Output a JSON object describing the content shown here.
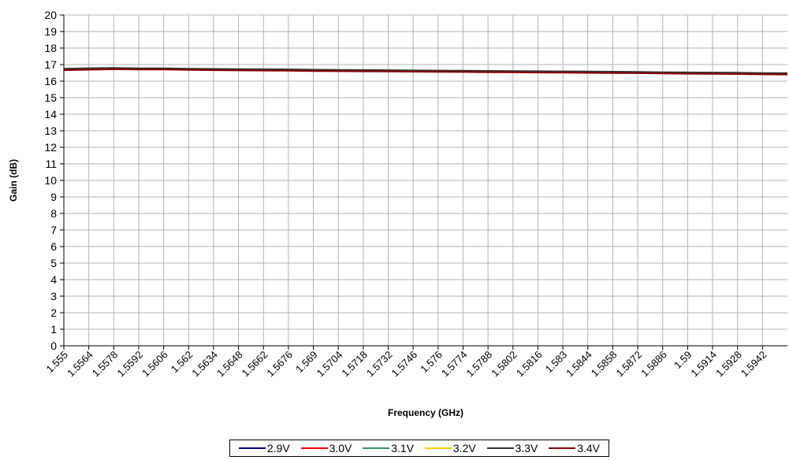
{
  "chart_data": {
    "type": "line",
    "title": "",
    "xlabel": "Frequency (GHz)",
    "ylabel": "Gain (dB)",
    "ylim": [
      0,
      20
    ],
    "yticks": [
      "0",
      "1",
      "2",
      "3",
      "4",
      "5",
      "6",
      "7",
      "8",
      "9",
      "10",
      "11",
      "12",
      "13",
      "14",
      "15",
      "16",
      "17",
      "18",
      "19",
      "20"
    ],
    "xlim": [
      1.555,
      1.5956
    ],
    "xticks": [
      "1.555",
      "1.5564",
      "1.5578",
      "1.5592",
      "1.5606",
      "1.562",
      "1.5634",
      "1.5648",
      "1.5662",
      "1.5676",
      "1.569",
      "1.5704",
      "1.5718",
      "1.5732",
      "1.5746",
      "1.576",
      "1.5774",
      "1.5788",
      "1.5802",
      "1.5816",
      "1.583",
      "1.5844",
      "1.5858",
      "1.5872",
      "1.5886",
      "1.59",
      "1.5914",
      "1.5928",
      "1.5942"
    ],
    "grid": true,
    "legend_position": "bottom",
    "series": [
      {
        "name": "2.9V",
        "color": "#000080",
        "x": [
          1.555,
          1.5564,
          1.5578,
          1.5592,
          1.5606,
          1.562,
          1.5634,
          1.5648,
          1.5662,
          1.5676,
          1.569,
          1.5704,
          1.5718,
          1.5732,
          1.5746,
          1.576,
          1.5774,
          1.5788,
          1.5802,
          1.5816,
          1.583,
          1.5844,
          1.5858,
          1.5872,
          1.5886,
          1.59,
          1.5914,
          1.5928,
          1.5942,
          1.5956
        ],
        "values": [
          16.68,
          16.72,
          16.75,
          16.72,
          16.72,
          16.7,
          16.68,
          16.67,
          16.66,
          16.65,
          16.63,
          16.62,
          16.61,
          16.6,
          16.59,
          16.58,
          16.57,
          16.56,
          16.55,
          16.54,
          16.53,
          16.52,
          16.51,
          16.5,
          16.48,
          16.47,
          16.46,
          16.45,
          16.43,
          16.42
        ]
      },
      {
        "name": "3.0V",
        "color": "#ff0000",
        "x": [
          1.555,
          1.5564,
          1.5578,
          1.5592,
          1.5606,
          1.562,
          1.5634,
          1.5648,
          1.5662,
          1.5676,
          1.569,
          1.5704,
          1.5718,
          1.5732,
          1.5746,
          1.576,
          1.5774,
          1.5788,
          1.5802,
          1.5816,
          1.583,
          1.5844,
          1.5858,
          1.5872,
          1.5886,
          1.59,
          1.5914,
          1.5928,
          1.5942,
          1.5956
        ],
        "values": [
          16.7,
          16.74,
          16.76,
          16.73,
          16.73,
          16.71,
          16.69,
          16.68,
          16.67,
          16.66,
          16.64,
          16.63,
          16.62,
          16.61,
          16.6,
          16.59,
          16.58,
          16.57,
          16.56,
          16.55,
          16.54,
          16.53,
          16.52,
          16.51,
          16.49,
          16.48,
          16.47,
          16.46,
          16.44,
          16.43
        ]
      },
      {
        "name": "3.1V",
        "color": "#339966",
        "x": [
          1.555,
          1.5564,
          1.5578,
          1.5592,
          1.5606,
          1.562,
          1.5634,
          1.5648,
          1.5662,
          1.5676,
          1.569,
          1.5704,
          1.5718,
          1.5732,
          1.5746,
          1.576,
          1.5774,
          1.5788,
          1.5802,
          1.5816,
          1.583,
          1.5844,
          1.5858,
          1.5872,
          1.5886,
          1.59,
          1.5914,
          1.5928,
          1.5942,
          1.5956
        ],
        "values": [
          16.72,
          16.75,
          16.77,
          16.74,
          16.74,
          16.72,
          16.71,
          16.7,
          16.69,
          16.68,
          16.66,
          16.65,
          16.64,
          16.63,
          16.62,
          16.61,
          16.6,
          16.59,
          16.58,
          16.57,
          16.56,
          16.55,
          16.54,
          16.53,
          16.51,
          16.5,
          16.49,
          16.48,
          16.46,
          16.45
        ]
      },
      {
        "name": "3.2V",
        "color": "#ffcc00",
        "x": [
          1.555,
          1.5564,
          1.5578,
          1.5592,
          1.5606,
          1.562,
          1.5634,
          1.5648,
          1.5662,
          1.5676,
          1.569,
          1.5704,
          1.5718,
          1.5732,
          1.5746,
          1.576,
          1.5774,
          1.5788,
          1.5802,
          1.5816,
          1.583,
          1.5844,
          1.5858,
          1.5872,
          1.5886,
          1.59,
          1.5914,
          1.5928,
          1.5942,
          1.5956
        ],
        "values": [
          16.74,
          16.77,
          16.79,
          16.76,
          16.76,
          16.74,
          16.73,
          16.72,
          16.71,
          16.7,
          16.68,
          16.67,
          16.66,
          16.65,
          16.64,
          16.63,
          16.62,
          16.61,
          16.6,
          16.59,
          16.58,
          16.57,
          16.56,
          16.55,
          16.53,
          16.52,
          16.51,
          16.5,
          16.48,
          16.47
        ]
      },
      {
        "name": "3.3V",
        "color": "#333333",
        "x": [
          1.555,
          1.5564,
          1.5578,
          1.5592,
          1.5606,
          1.562,
          1.5634,
          1.5648,
          1.5662,
          1.5676,
          1.569,
          1.5704,
          1.5718,
          1.5732,
          1.5746,
          1.576,
          1.5774,
          1.5788,
          1.5802,
          1.5816,
          1.583,
          1.5844,
          1.5858,
          1.5872,
          1.5886,
          1.59,
          1.5914,
          1.5928,
          1.5942,
          1.5956
        ],
        "values": [
          16.75,
          16.78,
          16.8,
          16.77,
          16.77,
          16.75,
          16.74,
          16.73,
          16.72,
          16.71,
          16.69,
          16.68,
          16.67,
          16.66,
          16.65,
          16.64,
          16.63,
          16.62,
          16.61,
          16.6,
          16.59,
          16.58,
          16.57,
          16.56,
          16.54,
          16.53,
          16.52,
          16.51,
          16.49,
          16.48
        ]
      },
      {
        "name": "3.4V",
        "color": "#8b0000",
        "x": [
          1.555,
          1.5564,
          1.5578,
          1.5592,
          1.5606,
          1.562,
          1.5634,
          1.5648,
          1.5662,
          1.5676,
          1.569,
          1.5704,
          1.5718,
          1.5732,
          1.5746,
          1.576,
          1.5774,
          1.5788,
          1.5802,
          1.5816,
          1.583,
          1.5844,
          1.5858,
          1.5872,
          1.5886,
          1.59,
          1.5914,
          1.5928,
          1.5942,
          1.5956
        ],
        "values": [
          16.66,
          16.69,
          16.72,
          16.7,
          16.7,
          16.68,
          16.66,
          16.65,
          16.64,
          16.63,
          16.61,
          16.6,
          16.59,
          16.58,
          16.57,
          16.56,
          16.55,
          16.54,
          16.53,
          16.52,
          16.51,
          16.5,
          16.49,
          16.48,
          16.46,
          16.45,
          16.44,
          16.43,
          16.41,
          16.4
        ]
      }
    ]
  }
}
